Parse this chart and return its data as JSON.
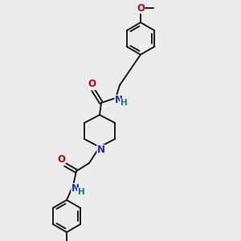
{
  "bg_color": "#ececec",
  "bond_color": "#1a1a1a",
  "atom_colors": {
    "O": "#cc0000",
    "N": "#2222cc",
    "C": "#1a1a1a",
    "H": "#008080"
  },
  "bond_lw": 1.4,
  "ring_r": 20
}
